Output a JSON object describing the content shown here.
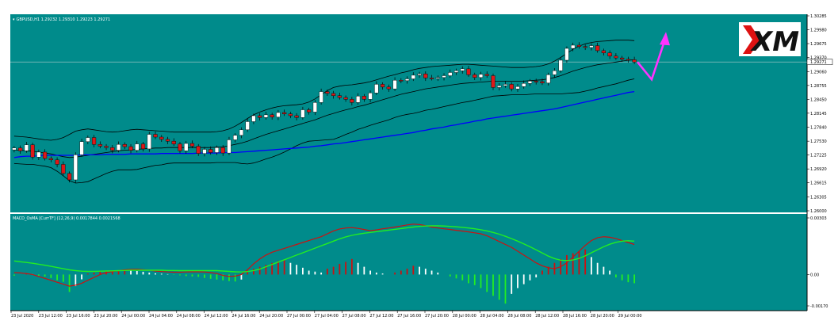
{
  "symbol_bar": {
    "marker": "▾",
    "text": "GBPUSD,H1  1.29232 1.29310 1.29223 1.29271"
  },
  "macd_bar": {
    "text": "MACD_OsMA [CurrTF] (12,26,9) 0.0017844 0.0021568"
  },
  "logo": {
    "text": "XM"
  },
  "colors": {
    "background": "#008b8b",
    "bull_candle": "#ffffff",
    "bear_candle": "#dd1818",
    "bollinger": "#000000",
    "ma": "#0000ff",
    "macd_line": "#cc1111",
    "signal_line": "#22ee22",
    "hist_up_rising": "#cc1111",
    "hist_up_falling": "#ffffff",
    "hist_down_falling": "#22ee22",
    "hist_down_rising": "#ffffff",
    "forecast_arrow": "#ff33ff",
    "price_line": "#8fbfbf"
  },
  "chart_data": [
    {
      "type": "candlestick",
      "ylim": [
        1.26,
        1.30285
      ],
      "y_tick_labels": [
        "1.30285",
        "1.29980",
        "1.29675",
        "1.29370",
        "1.29060",
        "1.28755",
        "1.28450",
        "1.28145",
        "1.27840",
        "1.27530",
        "1.27225",
        "1.26920",
        "1.26615",
        "1.26305",
        "1.26000"
      ],
      "current_price_label": "1.29271",
      "current_price": 1.29271,
      "x_tick_labels": [
        "23 Jul 2020",
        "23 Jul 12:00",
        "23 Jul 16:00",
        "23 Jul 20:00",
        "24 Jul 00:00",
        "24 Jul 04:00",
        "24 Jul 08:00",
        "24 Jul 12:00",
        "24 Jul 16:00",
        "24 Jul 20:00",
        "27 Jul 00:00",
        "27 Jul 04:00",
        "27 Jul 08:00",
        "27 Jul 12:00",
        "27 Jul 16:00",
        "27 Jul 20:00",
        "28 Jul 00:00",
        "28 Jul 04:00",
        "28 Jul 08:00",
        "28 Jul 12:00",
        "28 Jul 16:00",
        "28 Jul 20:00",
        "29 Jul 00:00"
      ],
      "close": [
        1.2738,
        1.2732,
        1.2745,
        1.2718,
        1.2729,
        1.2715,
        1.2712,
        1.2702,
        1.2682,
        1.2668,
        1.2723,
        1.2752,
        1.2761,
        1.2746,
        1.2742,
        1.2739,
        1.2733,
        1.2746,
        1.2741,
        1.2733,
        1.2747,
        1.2736,
        1.2768,
        1.2762,
        1.2757,
        1.2753,
        1.2747,
        1.2732,
        1.2748,
        1.2742,
        1.2726,
        1.2735,
        1.2728,
        1.2739,
        1.2727,
        1.2756,
        1.2766,
        1.2778,
        1.2796,
        1.2809,
        1.2805,
        1.2811,
        1.2806,
        1.2816,
        1.2813,
        1.2809,
        1.2805,
        1.2822,
        1.2817,
        1.2838,
        1.2862,
        1.2858,
        1.2853,
        1.2849,
        1.2845,
        1.2838,
        1.2852,
        1.2845,
        1.2859,
        1.2878,
        1.2872,
        1.2868,
        1.2887,
        1.2886,
        1.289,
        1.2898,
        1.2901,
        1.2892,
        1.2891,
        1.2893,
        1.2897,
        1.2904,
        1.2908,
        1.2912,
        1.2899,
        1.2893,
        1.29,
        1.2897,
        1.2871,
        1.2875,
        1.2878,
        1.2868,
        1.2873,
        1.288,
        1.2885,
        1.2884,
        1.2881,
        1.2899,
        1.2908,
        1.2931,
        1.2957,
        1.2964,
        1.2961,
        1.2959,
        1.2963,
        1.2952,
        1.2947,
        1.294,
        1.2936,
        1.2933,
        1.2932,
        1.2927
      ],
      "bollinger_upper": [
        1.2764,
        1.2763,
        1.2762,
        1.276,
        1.2758,
        1.2756,
        1.2755,
        1.2757,
        1.2761,
        1.2768,
        1.2775,
        1.2778,
        1.278,
        1.2778,
        1.2776,
        1.2774,
        1.2773,
        1.2774,
        1.2776,
        1.2778,
        1.2779,
        1.2778,
        1.2777,
        1.2776,
        1.2775,
        1.2774,
        1.2773,
        1.2773,
        1.2773,
        1.2773,
        1.2773,
        1.2773,
        1.2773,
        1.2774,
        1.2776,
        1.278,
        1.2786,
        1.2794,
        1.2803,
        1.2811,
        1.2817,
        1.2822,
        1.2826,
        1.2829,
        1.2831,
        1.2832,
        1.2833,
        1.2835,
        1.2839,
        1.2846,
        1.2855,
        1.2864,
        1.2871,
        1.2874,
        1.2876,
        1.2877,
        1.2879,
        1.2881,
        1.2884,
        1.2888,
        1.2892,
        1.2896,
        1.2899,
        1.2903,
        1.2906,
        1.291,
        1.2913,
        1.2915,
        1.2917,
        1.2918,
        1.2919,
        1.292,
        1.2921,
        1.2922,
        1.2922,
        1.2921,
        1.292,
        1.2919,
        1.2918,
        1.2917,
        1.2916,
        1.2915,
        1.2915,
        1.2915,
        1.2916,
        1.2917,
        1.2919,
        1.2923,
        1.2929,
        1.2937,
        1.2946,
        1.2955,
        1.2962,
        1.2967,
        1.297,
        1.2972,
        1.2973,
        1.2974,
        1.2975,
        1.2975,
        1.2975,
        1.2974
      ],
      "bollinger_middle": [
        1.2734,
        1.2733,
        1.2732,
        1.2731,
        1.2729,
        1.2727,
        1.2725,
        1.2722,
        1.2719,
        1.2717,
        1.2718,
        1.272,
        1.2722,
        1.2724,
        1.2726,
        1.2728,
        1.273,
        1.2732,
        1.2733,
        1.2734,
        1.2735,
        1.2736,
        1.2737,
        1.2738,
        1.2738,
        1.2739,
        1.2739,
        1.2739,
        1.2739,
        1.2739,
        1.2739,
        1.2739,
        1.2739,
        1.274,
        1.2741,
        1.2743,
        1.2746,
        1.2749,
        1.2753,
        1.2758,
        1.2763,
        1.2768,
        1.2772,
        1.2776,
        1.278,
        1.2784,
        1.2788,
        1.2792,
        1.2796,
        1.28,
        1.2805,
        1.281,
        1.2814,
        1.2818,
        1.2822,
        1.2825,
        1.2829,
        1.2832,
        1.2836,
        1.284,
        1.2844,
        1.2848,
        1.2852,
        1.2856,
        1.2859,
        1.2862,
        1.2865,
        1.2868,
        1.287,
        1.2872,
        1.2874,
        1.2876,
        1.2878,
        1.288,
        1.2881,
        1.2882,
        1.2883,
        1.2884,
        1.2885,
        1.2885,
        1.2885,
        1.2885,
        1.2885,
        1.2885,
        1.2886,
        1.2887,
        1.2888,
        1.289,
        1.2893,
        1.2897,
        1.2902,
        1.2907,
        1.2911,
        1.2915,
        1.2918,
        1.2921,
        1.2923,
        1.2925,
        1.2927,
        1.2929,
        1.2931,
        1.2932
      ],
      "bollinger_lower": [
        1.2704,
        1.2703,
        1.2702,
        1.2702,
        1.27,
        1.2698,
        1.2695,
        1.2687,
        1.2677,
        1.2666,
        1.2661,
        1.2662,
        1.2664,
        1.267,
        1.2676,
        1.2682,
        1.2687,
        1.269,
        1.269,
        1.269,
        1.2691,
        1.2694,
        1.2697,
        1.27,
        1.2701,
        1.2704,
        1.2705,
        1.2705,
        1.2705,
        1.2705,
        1.2705,
        1.2705,
        1.2705,
        1.2706,
        1.2706,
        1.2706,
        1.2706,
        1.2704,
        1.2703,
        1.2705,
        1.2709,
        1.2714,
        1.2718,
        1.2723,
        1.2729,
        1.2736,
        1.2743,
        1.2749,
        1.2753,
        1.2754,
        1.2755,
        1.2756,
        1.2757,
        1.2762,
        1.2768,
        1.2773,
        1.2779,
        1.2783,
        1.2788,
        1.2792,
        1.2796,
        1.28,
        1.2805,
        1.2809,
        1.2812,
        1.2814,
        1.2817,
        1.2821,
        1.2823,
        1.2826,
        1.2829,
        1.2832,
        1.2835,
        1.2838,
        1.284,
        1.2843,
        1.2846,
        1.2849,
        1.2852,
        1.2853,
        1.2854,
        1.2855,
        1.2855,
        1.2855,
        1.2856,
        1.2857,
        1.2857,
        1.2857,
        1.2857,
        1.2857,
        1.2858,
        1.2859,
        1.286,
        1.2863,
        1.2866,
        1.287,
        1.2873,
        1.2876,
        1.2879,
        1.2883,
        1.2887,
        1.289
      ],
      "ma": [
        1.2717,
        1.2719,
        1.272,
        1.272,
        1.2721,
        1.2722,
        1.2722,
        1.2722,
        1.2722,
        1.2722,
        1.2722,
        1.2723,
        1.2723,
        1.2723,
        1.2723,
        1.2724,
        1.2724,
        1.2724,
        1.2724,
        1.2725,
        1.2725,
        1.2725,
        1.2725,
        1.2725,
        1.2726,
        1.2726,
        1.2726,
        1.2726,
        1.2726,
        1.2726,
        1.2727,
        1.2727,
        1.2727,
        1.2727,
        1.2728,
        1.2728,
        1.2728,
        1.2729,
        1.273,
        1.2731,
        1.2732,
        1.2733,
        1.2734,
        1.2735,
        1.2736,
        1.2737,
        1.2738,
        1.2739,
        1.274,
        1.2742,
        1.2743,
        1.2745,
        1.2747,
        1.2748,
        1.275,
        1.2752,
        1.2754,
        1.2756,
        1.2758,
        1.276,
        1.2762,
        1.2764,
        1.2766,
        1.2768,
        1.277,
        1.2772,
        1.2775,
        1.2777,
        1.278,
        1.2782,
        1.2784,
        1.2787,
        1.2789,
        1.2792,
        1.2794,
        1.2797,
        1.2799,
        1.2802,
        1.2804,
        1.2806,
        1.2808,
        1.281,
        1.2812,
        1.2814,
        1.2816,
        1.2818,
        1.282,
        1.2822,
        1.2824,
        1.2827,
        1.283,
        1.2833,
        1.2836,
        1.2839,
        1.2842,
        1.2845,
        1.2848,
        1.2851,
        1.2854,
        1.2857,
        1.286,
        1.2862
      ]
    },
    {
      "type": "macd_histogram",
      "ylim": [
        -0.0017,
        0.003
      ],
      "y_tick_labels": [
        "0.00303",
        "0.00",
        "-0.00170"
      ],
      "macd": [
        0.0001,
        8e-05,
        5e-05,
        0.0,
        -0.0001,
        -0.0002,
        -0.0003,
        -0.0004,
        -0.0005,
        -0.0006,
        -0.00055,
        -0.00045,
        -0.0003,
        -0.00015,
        0.0,
        0.0001,
        0.00015,
        0.0002,
        0.00024,
        0.00026,
        0.00027,
        0.00025,
        0.00022,
        0.00018,
        0.00015,
        0.00013,
        0.00012,
        0.00012,
        0.00013,
        0.00014,
        0.00014,
        0.00013,
        0.0001,
        5e-05,
        -5e-05,
        -0.0001,
        -8e-05,
        0.0,
        0.00025,
        0.00055,
        0.0008,
        0.001,
        0.00115,
        0.00125,
        0.00135,
        0.00145,
        0.00155,
        0.00165,
        0.00175,
        0.00185,
        0.00195,
        0.0021,
        0.00225,
        0.00235,
        0.0024,
        0.00242,
        0.00238,
        0.00232,
        0.00226,
        0.0023,
        0.00236,
        0.0024,
        0.00245,
        0.0025,
        0.00256,
        0.0026,
        0.00258,
        0.00252,
        0.00245,
        0.0024,
        0.00236,
        0.00232,
        0.00228,
        0.00224,
        0.0022,
        0.00215,
        0.0021,
        0.002,
        0.00185,
        0.0017,
        0.00155,
        0.0014,
        0.0012,
        0.001,
        0.0008,
        0.0006,
        0.00045,
        0.00035,
        0.0003,
        0.0004,
        0.0006,
        0.0009,
        0.0012,
        0.0015,
        0.00175,
        0.0019,
        0.00195,
        0.00192,
        0.00185,
        0.00175,
        0.00165,
        0.00155
      ],
      "signal": [
        0.0007,
        0.00066,
        0.00062,
        0.00058,
        0.00053,
        0.00048,
        0.00042,
        0.00036,
        0.0003,
        0.00024,
        0.0002,
        0.00017,
        0.00016,
        0.00016,
        0.00017,
        0.00018,
        0.00019,
        0.0002,
        0.00021,
        0.00022,
        0.00022,
        0.00022,
        0.00022,
        0.00022,
        0.00022,
        0.00021,
        0.00021,
        0.0002,
        0.0002,
        0.0002,
        0.0002,
        0.0002,
        0.0002,
        0.0002,
        0.00018,
        0.00016,
        0.00014,
        0.00013,
        0.00015,
        0.0002,
        0.00028,
        0.0004,
        0.00052,
        0.00064,
        0.00076,
        0.00088,
        0.001,
        0.00112,
        0.00124,
        0.00136,
        0.00148,
        0.0016,
        0.00172,
        0.00184,
        0.00194,
        0.00202,
        0.00208,
        0.00213,
        0.00217,
        0.00221,
        0.00225,
        0.00229,
        0.00233,
        0.00237,
        0.00241,
        0.00245,
        0.00248,
        0.0025,
        0.00251,
        0.00251,
        0.0025,
        0.00248,
        0.00246,
        0.00243,
        0.0024,
        0.00236,
        0.00231,
        0.00225,
        0.00217,
        0.00208,
        0.00197,
        0.00185,
        0.00172,
        0.00158,
        0.00143,
        0.00127,
        0.00111,
        0.00095,
        0.00082,
        0.00074,
        0.00072,
        0.00075,
        0.00083,
        0.00096,
        0.00112,
        0.00128,
        0.00143,
        0.00156,
        0.00166,
        0.00172,
        0.00174,
        0.00172
      ],
      "histogram": [
        -6e-05,
        0.0,
        4e-05,
        2e-05,
        -6e-05,
        -0.0001,
        -0.00018,
        -0.0003,
        -0.00038,
        -0.0009,
        -0.0006,
        -0.00025,
        5e-05,
        0.0001,
        0.00015,
        0.00018,
        0.0002,
        0.00022,
        0.00024,
        0.00022,
        0.00018,
        0.00014,
        0.0001,
        6e-05,
        4e-05,
        2e-05,
        -2e-05,
        -4e-05,
        -8e-05,
        -0.0001,
        -0.00012,
        -0.00018,
        -0.00022,
        -0.00026,
        -0.0003,
        -0.00034,
        -0.00036,
        -0.00026,
        0.0002,
        0.0003,
        0.0004,
        0.0005,
        0.0006,
        0.0007,
        0.00075,
        0.0006,
        0.0005,
        0.00035,
        0.0002,
        0.00015,
        0.0001,
        0.0003,
        0.0004,
        0.00055,
        0.00065,
        0.0008,
        0.0006,
        0.0004,
        0.0002,
        0.0001,
        5e-05,
        0.0,
        0.0001,
        0.0002,
        0.0003,
        0.00045,
        0.0004,
        0.0003,
        0.0002,
        0.0001,
        0.0,
        -0.0001,
        -0.0002,
        -0.0003,
        -0.00045,
        -0.00055,
        -0.0007,
        -0.0009,
        -0.0011,
        -0.0013,
        -0.0015,
        -0.001,
        -0.0007,
        -0.0005,
        -0.0003,
        -0.00015,
        0.0002,
        0.0004,
        0.0006,
        0.0008,
        0.001,
        0.0011,
        0.0012,
        0.0013,
        0.0009,
        0.0006,
        0.0004,
        0.0002,
        -0.00015,
        -0.0003,
        -0.0004,
        -0.00045
      ]
    }
  ]
}
